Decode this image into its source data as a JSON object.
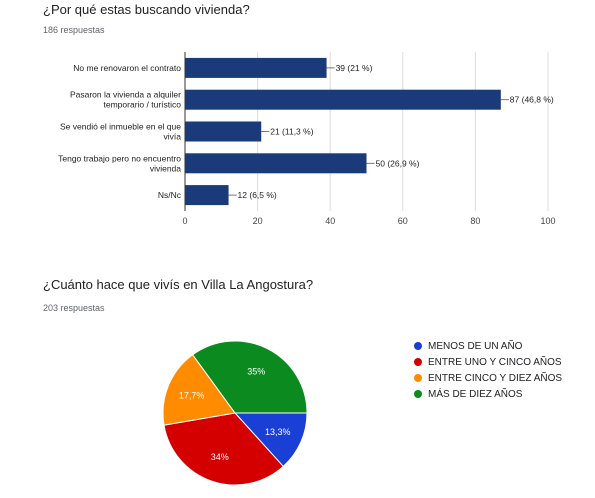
{
  "q1": {
    "title": "¿Por qué estas buscando vivienda?",
    "responses": "186 respuestas"
  },
  "q2": {
    "title": "¿Cuánto hace que vivís en Villa La Angostura?",
    "responses": "203 respuestas"
  },
  "chart_data": [
    {
      "type": "bar",
      "orientation": "horizontal",
      "categories": [
        [
          "No me renovaron el contrato"
        ],
        [
          "Pasaron la vivienda a alquiler",
          "temporario / turístico"
        ],
        [
          "Se vendió el inmueble en el que",
          "vivía"
        ],
        [
          "Tengo trabajo pero no encuentro",
          "vivienda"
        ],
        [
          "Ns/Nc"
        ]
      ],
      "values": [
        39,
        87,
        21,
        50,
        12
      ],
      "data_labels": [
        "39 (21 %)",
        "87 (46,8 %)",
        "21 (11,3 %)",
        "50 (26,9 %)",
        "12 (6,5 %)"
      ],
      "xlim": [
        0,
        100
      ],
      "xticks": [
        "0",
        "20",
        "40",
        "60",
        "80",
        "100"
      ],
      "grid": true,
      "color": "#1a3a7a"
    },
    {
      "type": "pie",
      "slices": [
        {
          "label": "MENOS DE UN AÑO",
          "value": 13.3,
          "text": "13,3%",
          "color": "#1a3fd6"
        },
        {
          "label": "ENTRE UNO Y CINCO AÑOS",
          "value": 34,
          "text": "34%",
          "color": "#d40000"
        },
        {
          "label": "ENTRE CINCO Y DIEZ AÑOS",
          "value": 17.7,
          "text": "17,7%",
          "color": "#ff8c00"
        },
        {
          "label": "MÁS DE DIEZ AÑOS",
          "value": 35,
          "text": "35%",
          "color": "#0b8a1f"
        }
      ],
      "legend_position": "right"
    }
  ]
}
